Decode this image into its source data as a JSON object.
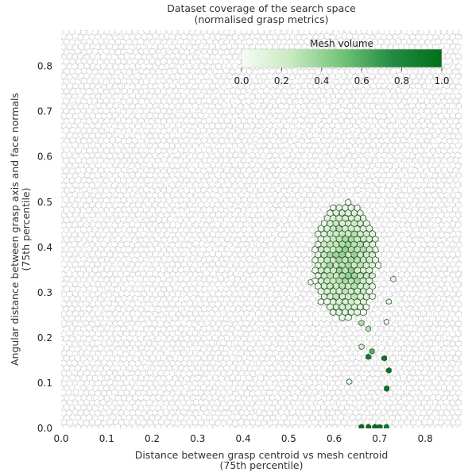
{
  "chart_data": {
    "type": "heatmap",
    "title": "Dataset coverage of the search space",
    "subtitle": "(normalised grasp metrics)",
    "xlabel": "Distance between grasp centroid vs mesh centroid",
    "xlabel_sub": "(75th percentile)",
    "ylabel": "Angular distance between grasp axis and face normals",
    "ylabel_sub": "(75th percentile)",
    "xlim": [
      0.0,
      0.88
    ],
    "ylim": [
      0.0,
      0.88
    ],
    "xticks": [
      "0.0",
      "0.1",
      "0.2",
      "0.3",
      "0.4",
      "0.5",
      "0.6",
      "0.7",
      "0.8"
    ],
    "yticks": [
      "0.0",
      "0.1",
      "0.2",
      "0.3",
      "0.4",
      "0.5",
      "0.6",
      "0.7",
      "0.8"
    ],
    "grid": false,
    "cell_style": "voronoi tessellation, empty cells light grey outline",
    "colorbar": {
      "title": "Mesh volume",
      "ticks": [
        "0.0",
        "0.2",
        "0.4",
        "0.6",
        "0.8",
        "1.0"
      ],
      "range": [
        0,
        1
      ],
      "colormap": "Greens",
      "placement": "top-right"
    },
    "cluster": {
      "x_center": 0.625,
      "y_center": 0.37,
      "x_halfwidth": 0.07,
      "y_halfwidth": 0.13,
      "value_range": [
        0.0,
        0.45
      ]
    },
    "points": [
      {
        "x": 0.548,
        "y": 0.323,
        "v": 0.05
      },
      {
        "x": 0.73,
        "y": 0.33,
        "v": 0.05
      },
      {
        "x": 0.72,
        "y": 0.28,
        "v": 0.1
      },
      {
        "x": 0.715,
        "y": 0.235,
        "v": 0.05
      },
      {
        "x": 0.66,
        "y": 0.233,
        "v": 0.3
      },
      {
        "x": 0.675,
        "y": 0.22,
        "v": 0.3
      },
      {
        "x": 0.66,
        "y": 0.18,
        "v": 0.2
      },
      {
        "x": 0.683,
        "y": 0.17,
        "v": 0.6
      },
      {
        "x": 0.675,
        "y": 0.158,
        "v": 0.9
      },
      {
        "x": 0.71,
        "y": 0.155,
        "v": 0.95
      },
      {
        "x": 0.72,
        "y": 0.128,
        "v": 0.95
      },
      {
        "x": 0.633,
        "y": 0.103,
        "v": 0.1
      },
      {
        "x": 0.715,
        "y": 0.088,
        "v": 0.95
      },
      {
        "x": 0.66,
        "y": 0.003,
        "v": 1.0
      },
      {
        "x": 0.675,
        "y": 0.003,
        "v": 1.0
      },
      {
        "x": 0.69,
        "y": 0.003,
        "v": 1.0
      },
      {
        "x": 0.7,
        "y": 0.003,
        "v": 1.0
      },
      {
        "x": 0.715,
        "y": 0.003,
        "v": 0.9
      }
    ]
  }
}
